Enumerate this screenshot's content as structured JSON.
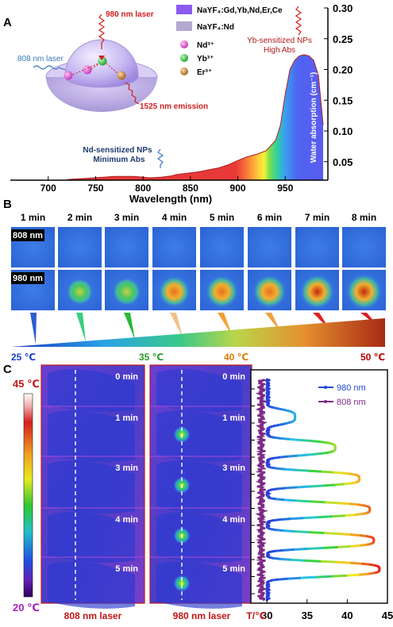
{
  "chart_data": [
    {
      "panel": "A",
      "type": "area",
      "xlabel": "Wavelength (nm)",
      "ylabel": "Water absorption (cm⁻¹)",
      "x_ticks": [
        "700",
        "750",
        "800",
        "850",
        "900",
        "950"
      ],
      "y_ticks": [
        "0.05",
        "0.10",
        "0.15",
        "0.20",
        "0.25",
        "0.30"
      ],
      "xlim": [
        660,
        995
      ],
      "ylim": [
        0.02,
        0.3
      ],
      "series": [
        {
          "x": [
            720,
            730,
            740,
            750,
            760,
            770,
            780,
            790,
            800,
            805,
            810,
            820,
            830,
            835,
            840,
            850,
            860,
            870,
            880,
            890,
            900,
            910,
            920,
            930,
            940,
            945,
            950,
            955,
            960,
            965,
            970,
            975,
            980,
            985,
            990
          ],
          "y": [
            0.021,
            0.022,
            0.023,
            0.024,
            0.025,
            0.026,
            0.026,
            0.026,
            0.025,
            0.024,
            0.024,
            0.025,
            0.027,
            0.029,
            0.03,
            0.032,
            0.034,
            0.037,
            0.04,
            0.045,
            0.052,
            0.058,
            0.062,
            0.068,
            0.085,
            0.11,
            0.16,
            0.2,
            0.215,
            0.222,
            0.224,
            0.222,
            0.215,
            0.19,
            0.11
          ]
        }
      ],
      "legend": [
        {
          "label": "NaYF₄:Gd,Yb,Nd,Er,Ce",
          "color": "#8a5cf0"
        },
        {
          "label": "NaYF₄:Nd",
          "color": "#b3a8cf"
        },
        {
          "label": "Nd³⁺",
          "color": "#d146c8"
        },
        {
          "label": "Yb³⁺",
          "color": "#2fb53a"
        },
        {
          "label": "Er³⁺",
          "color": "#c17a2e"
        }
      ],
      "annotations": {
        "laser980": "980 nm laser",
        "laser808": "808 nm laser",
        "emission": "1525 nm emission",
        "nd_note_1": "Nd-sensitized NPs",
        "nd_note_2": "Minimum Abs",
        "yb_note_1": "Yb-sensitized NPs",
        "yb_note_2": "High Abs"
      }
    },
    {
      "panel": "B",
      "type": "heatmap",
      "times": [
        "1 min",
        "2 min",
        "3 min",
        "4 min",
        "5 min",
        "6 min",
        "7 min",
        "8 min"
      ],
      "rows": [
        {
          "label": "808 nm",
          "intensity": [
            0,
            0,
            0,
            0,
            0,
            0,
            0,
            0
          ]
        },
        {
          "label": "980 nm",
          "intensity": [
            0,
            0.45,
            0.55,
            0.75,
            0.8,
            0.85,
            0.92,
            1.0
          ]
        }
      ],
      "colorbar_ticks": [
        {
          "label": "25 ℃",
          "color": "#1a3fc9"
        },
        {
          "label": "35 ℃",
          "color": "#2a9a2a"
        },
        {
          "label": "40 ℃",
          "color": "#e07b00"
        },
        {
          "label": "50 ℃",
          "color": "#b40000"
        }
      ]
    },
    {
      "panel": "C",
      "type": "line",
      "colorbar_max": "45 ℃",
      "colorbar_min": "20 ℃",
      "image_times": [
        "0 min",
        "1 min",
        "3 min",
        "4 min",
        "5 min"
      ],
      "column_labels": [
        "808 nm laser",
        "980 nm laser"
      ],
      "xlabel": "T/℃",
      "x_ticks": [
        "30",
        "35",
        "40",
        "45"
      ],
      "xlim": [
        28,
        45
      ],
      "series": [
        {
          "name": "980 nm",
          "color": "#2348d8",
          "peaks": [
            {
              "center": 0.0,
              "amp": 0.0
            },
            {
              "center": 0.17,
              "amp": 33.5
            },
            {
              "center": 0.31,
              "amp": 38.5
            },
            {
              "center": 0.45,
              "amp": 41.5
            },
            {
              "center": 0.59,
              "amp": 42.8
            },
            {
              "center": 0.73,
              "amp": 43.3
            },
            {
              "center": 0.86,
              "amp": 44.0
            }
          ]
        },
        {
          "name": "808 nm",
          "color": "#7d2a86"
        }
      ]
    }
  ],
  "panel_labels": {
    "a": "A",
    "b": "B",
    "c": "C"
  }
}
